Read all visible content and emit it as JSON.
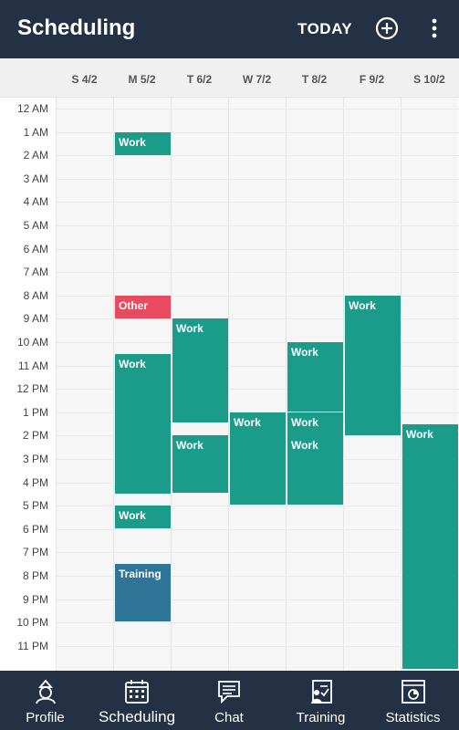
{
  "appbar": {
    "title": "Scheduling",
    "today_label": "TODAY",
    "add_icon": "add-circle-icon",
    "more_icon": "more-vertical-icon"
  },
  "days": [
    "S 4/2",
    "M 5/2",
    "T 6/2",
    "W 7/2",
    "T 8/2",
    "F 9/2",
    "S 10/2"
  ],
  "hours": [
    "12 AM",
    "1 AM",
    "2 AM",
    "3 AM",
    "4 AM",
    "5 AM",
    "6 AM",
    "7 AM",
    "8 AM",
    "9 AM",
    "10 AM",
    "11 AM",
    "12 PM",
    "1 PM",
    "2 PM",
    "3 PM",
    "4 PM",
    "5 PM",
    "6 PM",
    "7 PM",
    "8 PM",
    "9 PM",
    "10 PM",
    "11 PM"
  ],
  "events": [
    {
      "day": 1,
      "label": "Work",
      "type": "work",
      "start": 1.0,
      "end": 2.0
    },
    {
      "day": 1,
      "label": "Other",
      "type": "other",
      "start": 8.0,
      "end": 9.0
    },
    {
      "day": 1,
      "label": "Work",
      "type": "work",
      "start": 10.5,
      "end": 16.5
    },
    {
      "day": 1,
      "label": "Work",
      "type": "work",
      "start": 17.0,
      "end": 18.0
    },
    {
      "day": 1,
      "label": "Training",
      "type": "training",
      "start": 19.5,
      "end": 22.0
    },
    {
      "day": 2,
      "label": "Work",
      "type": "work",
      "start": 9.0,
      "end": 13.5
    },
    {
      "day": 2,
      "label": "Work",
      "type": "work",
      "start": 14.0,
      "end": 16.5
    },
    {
      "day": 3,
      "label": "Work",
      "type": "work",
      "start": 13.0,
      "end": 17.0
    },
    {
      "day": 4,
      "label": "Work",
      "type": "work",
      "start": 10.0,
      "end": 13.0
    },
    {
      "day": 4,
      "label": "Work",
      "type": "work",
      "start": 13.0,
      "end": 14.0
    },
    {
      "day": 4,
      "label": "Work",
      "type": "work",
      "start": 14.0,
      "end": 17.0
    },
    {
      "day": 5,
      "label": "Work",
      "type": "work",
      "start": 8.0,
      "end": 14.0
    },
    {
      "day": 6,
      "label": "Work",
      "type": "work",
      "start": 13.5,
      "end": 24.0
    }
  ],
  "nav": [
    {
      "label": "Profile",
      "icon": "profile-icon",
      "active": false
    },
    {
      "label": "Scheduling",
      "icon": "calendar-icon",
      "active": true
    },
    {
      "label": "Chat",
      "icon": "chat-icon",
      "active": false
    },
    {
      "label": "Training",
      "icon": "training-icon",
      "active": false
    },
    {
      "label": "Statistics",
      "icon": "statistics-icon",
      "active": false
    }
  ]
}
